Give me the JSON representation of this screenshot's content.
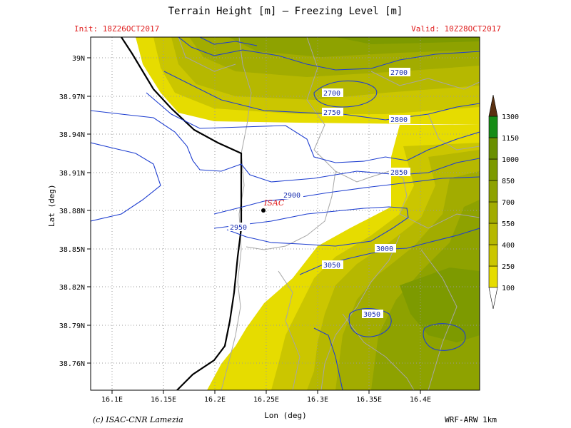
{
  "header": {
    "title": "Terrain Height [m] — Freezing Level [m]",
    "init": "Init: 18Z26OCT2017",
    "valid": "Valid: 10Z28OCT2017"
  },
  "axes": {
    "xlabel": "Lon (deg)",
    "ylabel": "Lat (deg)",
    "xticks": [
      "16.1E",
      "16.15E",
      "16.2E",
      "16.25E",
      "16.3E",
      "16.35E",
      "16.4E"
    ],
    "yticks": [
      "39N",
      "38.97N",
      "38.94N",
      "38.91N",
      "38.88N",
      "38.85N",
      "38.82N",
      "38.79N",
      "38.76N"
    ]
  },
  "colorbar": {
    "levels": [
      "100",
      "250",
      "400",
      "550",
      "700",
      "850",
      "1000",
      "1150",
      "1300"
    ],
    "colors": [
      "#e6dc00",
      "#cbc600",
      "#b6b800",
      "#a2ac00",
      "#8ea200",
      "#7d9a00",
      "#6a9000",
      "#168c16",
      "#5a3010"
    ]
  },
  "contours": {
    "labels": [
      "2700",
      "2700",
      "2750",
      "2800",
      "2850",
      "2900",
      "2950",
      "3000",
      "3050",
      "3050"
    ],
    "color": "#1f3fd0"
  },
  "station": {
    "name": "ISAC",
    "lon": 16.24,
    "lat": 38.88
  },
  "footer": {
    "copyright": "(c) ISAC-CNR Lamezia",
    "model": "WRF-ARW 1km"
  }
}
